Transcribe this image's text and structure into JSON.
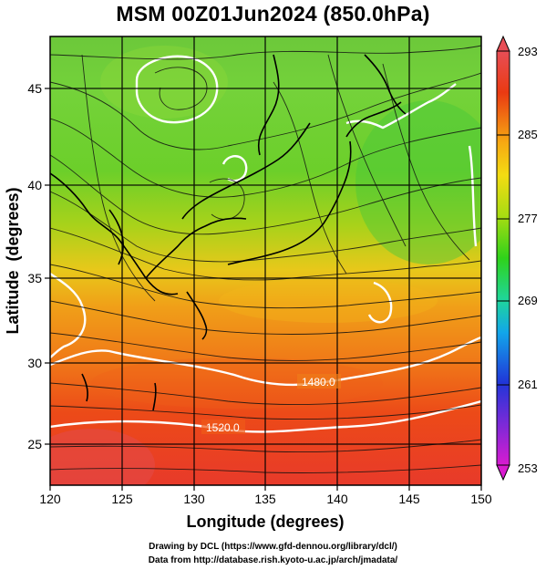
{
  "title": "MSM 00Z01Jun2024 (850.0hPa)",
  "x_axis": {
    "label": "Longitude (degrees)",
    "ticks": [
      "120",
      "125",
      "130",
      "135",
      "140",
      "145",
      "150"
    ],
    "range": [
      120,
      150
    ]
  },
  "y_axis": {
    "label": "Latitude  (degrees)",
    "ticks": [
      "25",
      "30",
      "35",
      "40",
      "45"
    ],
    "range": [
      22.4,
      47.6
    ]
  },
  "colorbar": {
    "ticks": [
      "293",
      "285",
      "277",
      "269",
      "261",
      "253"
    ],
    "range": [
      253,
      293
    ],
    "colors": [
      "#d81bd0",
      "#7a2ad8",
      "#2036d8",
      "#12a6ea",
      "#1fd69a",
      "#2fd21a",
      "#a6dc12",
      "#f3dc12",
      "#f7a812",
      "#ea3a12",
      "#e84e56"
    ]
  },
  "contours": [
    {
      "label": "1480.0"
    },
    {
      "label": "1520.0"
    }
  ],
  "credits": {
    "line1": "Drawing by DCL (https://www.gfd-dennou.org/library/dcl/)",
    "line2": "Data from http://database.rish.kyoto-u.ac.jp/arch/jmadata/"
  }
}
